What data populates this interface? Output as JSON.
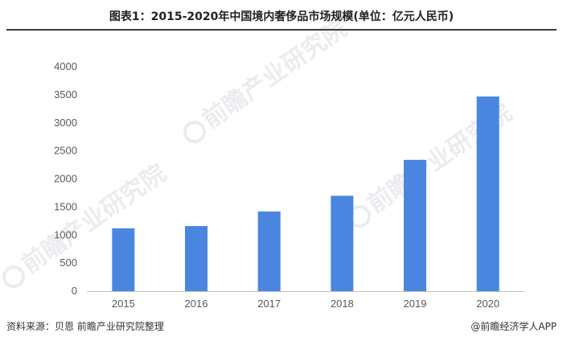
{
  "header": {
    "title": "图表1：2015-2020年中国境内奢侈品市场规模(单位：亿元人民币)"
  },
  "footer": {
    "source": "资料来源：贝恩 前瞻产业研究院整理",
    "brand": "@前瞻经济学人APP"
  },
  "watermark": {
    "text": "前瞻产业研究院"
  },
  "colors": {
    "bar": "#4a86e0",
    "axis": "#bfbfbf",
    "tick_text": "#595959"
  },
  "chart_data": {
    "type": "bar",
    "categories": [
      "2015",
      "2016",
      "2017",
      "2018",
      "2019",
      "2020"
    ],
    "series": [
      {
        "values": [
          1120,
          1160,
          1420,
          1700,
          2340,
          3470
        ]
      }
    ],
    "ylim": [
      0,
      4000
    ],
    "yticks": [
      0,
      500,
      1000,
      1500,
      2000,
      2500,
      3000,
      3500,
      4000
    ],
    "grid": false,
    "legend": "none"
  }
}
